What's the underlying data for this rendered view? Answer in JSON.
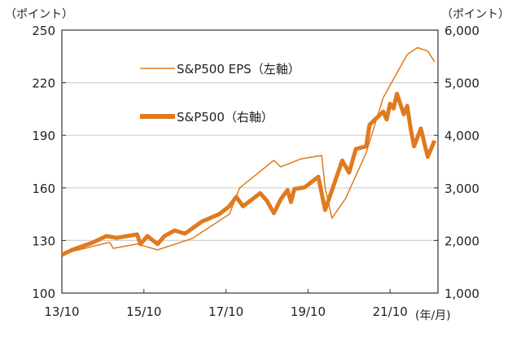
{
  "chart_data": {
    "type": "line",
    "title": "",
    "left_unit_label": "（ポイント）",
    "right_unit_label": "（ポイント）",
    "x_unit_label": "(年/月)",
    "x_ticks": [
      "13/10",
      "15/10",
      "17/10",
      "19/10",
      "21/10"
    ],
    "x_tick_dates": [
      "2013/10",
      "2015/10",
      "2017/10",
      "2019/10",
      "2021/10"
    ],
    "x_range": [
      "2013/10",
      "2022/12"
    ],
    "y_left": {
      "range": [
        100,
        250
      ],
      "ticks": [
        100,
        130,
        160,
        190,
        220,
        250
      ],
      "tick_labels": [
        "100",
        "130",
        "160",
        "190",
        "220",
        "250"
      ]
    },
    "y_right": {
      "range": [
        1000,
        6000
      ],
      "ticks": [
        1000,
        2000,
        3000,
        4000,
        5000,
        6000
      ],
      "tick_labels": [
        "1,000",
        "2,000",
        "3,000",
        "4,000",
        "5,000",
        "6,000"
      ]
    },
    "grid": true,
    "legend_placement": "top-center",
    "series": [
      {
        "name": "S&P500 EPS（左軸）",
        "axis": "left",
        "color": "#E07A1F",
        "style": "thin",
        "points": [
          [
            "2013/10",
            122.3
          ],
          [
            "2014/12",
            129
          ],
          [
            "2015/01",
            125.5
          ],
          [
            "2015/08",
            128
          ],
          [
            "2016/02",
            124.6
          ],
          [
            "2016/12",
            131
          ],
          [
            "2017/11",
            145
          ],
          [
            "2018/02",
            160
          ],
          [
            "2018/12",
            175.7
          ],
          [
            "2019/02",
            172
          ],
          [
            "2019/08",
            176.6
          ],
          [
            "2020/02",
            178.5
          ],
          [
            "2020/03",
            160
          ],
          [
            "2020/05",
            142.7
          ],
          [
            "2020/09",
            154
          ],
          [
            "2021/03",
            180
          ],
          [
            "2021/08",
            211.5
          ],
          [
            "2021/11",
            222
          ],
          [
            "2022/03",
            236
          ],
          [
            "2022/06",
            240
          ],
          [
            "2022/09",
            238
          ],
          [
            "2022/11",
            232
          ]
        ]
      },
      {
        "name": "S&P500（右軸）",
        "axis": "right",
        "color": "#E07A1F",
        "style": "thick",
        "points": [
          [
            "2013/10",
            1727
          ],
          [
            "2014/01",
            1820
          ],
          [
            "2014/07",
            1960
          ],
          [
            "2014/11",
            2084
          ],
          [
            "2015/02",
            2050
          ],
          [
            "2015/08",
            2115
          ],
          [
            "2015/09",
            1930
          ],
          [
            "2015/11",
            2084
          ],
          [
            "2016/02",
            1930
          ],
          [
            "2016/04",
            2084
          ],
          [
            "2016/07",
            2190
          ],
          [
            "2016/10",
            2130
          ],
          [
            "2017/03",
            2360
          ],
          [
            "2017/08",
            2500
          ],
          [
            "2017/11",
            2650
          ],
          [
            "2018/01",
            2830
          ],
          [
            "2018/03",
            2650
          ],
          [
            "2018/08",
            2900
          ],
          [
            "2018/10",
            2750
          ],
          [
            "2018/12",
            2520
          ],
          [
            "2019/02",
            2780
          ],
          [
            "2019/04",
            2960
          ],
          [
            "2019/05",
            2730
          ],
          [
            "2019/06",
            2980
          ],
          [
            "2019/09",
            3010
          ],
          [
            "2020/01",
            3210
          ],
          [
            "2020/03",
            2580
          ],
          [
            "2020/08",
            3520
          ],
          [
            "2020/10",
            3290
          ],
          [
            "2020/12",
            3740
          ],
          [
            "2021/03",
            3790
          ],
          [
            "2021/04",
            4200
          ],
          [
            "2021/08",
            4450
          ],
          [
            "2021/09",
            4300
          ],
          [
            "2021/10",
            4600
          ],
          [
            "2021/11",
            4510
          ],
          [
            "2021/12",
            4790
          ],
          [
            "2022/02",
            4400
          ],
          [
            "2022/03",
            4560
          ],
          [
            "2022/04",
            4130
          ],
          [
            "2022/05",
            3790
          ],
          [
            "2022/07",
            4130
          ],
          [
            "2022/09",
            3590
          ],
          [
            "2022/11",
            3900
          ]
        ]
      }
    ]
  }
}
